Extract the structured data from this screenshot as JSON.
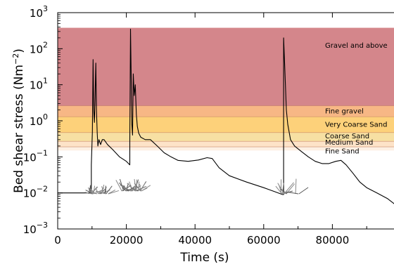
{
  "chart_data": {
    "type": "line",
    "title": "",
    "xlabel": "Time (s)",
    "ylabel": "Bed shear stress (Nm",
    "ylabel_sup": "−2",
    "ylabel_close": ")",
    "x_scale": "linear",
    "y_scale": "log",
    "xlim": [
      0,
      100000
    ],
    "ylim": [
      0.001,
      1000
    ],
    "x_ticks": [
      0,
      20000,
      40000,
      60000,
      80000
    ],
    "x_tick_labels": [
      "0",
      "20000",
      "40000",
      "60000",
      "80000"
    ],
    "y_ticks": [
      0.001,
      0.01,
      0.1,
      1,
      10,
      100,
      1000
    ],
    "y_tick_labels": [
      {
        "base": "10",
        "exp": "−3"
      },
      {
        "base": "10",
        "exp": "−2"
      },
      {
        "base": "10",
        "exp": "−1"
      },
      {
        "base": "10",
        "exp": "0"
      },
      {
        "base": "10",
        "exp": "1"
      },
      {
        "base": "10",
        "exp": "2"
      },
      {
        "base": "10",
        "exp": "3"
      }
    ],
    "grid": false,
    "legend": "none",
    "bands": [
      {
        "label": "Fine Sand",
        "low": 0.15,
        "high": 0.19,
        "color": "#fdf0e4"
      },
      {
        "label": "Medium Sand",
        "low": 0.19,
        "high": 0.27,
        "color": "#fde3c8"
      },
      {
        "label": "Coarse Sand",
        "low": 0.27,
        "high": 0.47,
        "color": "#f7e0a3"
      },
      {
        "label": "Very Coarse Sand",
        "low": 0.47,
        "high": 1.3,
        "color": "#fdd17a"
      },
      {
        "label": "Fine gravel",
        "low": 1.3,
        "high": 2.6,
        "color": "#f7b785"
      },
      {
        "label": "Gravel and above",
        "low": 2.6,
        "high": 380,
        "color": "#d4868b"
      }
    ],
    "series": [
      {
        "color": "#000000",
        "points": [
          [
            0,
            0.01
          ],
          [
            9800,
            0.01
          ],
          [
            9800,
            0.06
          ],
          [
            10100,
            0.5
          ],
          [
            10300,
            50
          ],
          [
            10500,
            2
          ],
          [
            10700,
            0.9
          ],
          [
            10900,
            5
          ],
          [
            11100,
            40
          ],
          [
            11300,
            2
          ],
          [
            11500,
            0.5
          ],
          [
            11700,
            0.2
          ],
          [
            12000,
            0.3
          ],
          [
            12500,
            0.22
          ],
          [
            13000,
            0.3
          ],
          [
            13500,
            0.3
          ],
          [
            14500,
            0.22
          ],
          [
            16000,
            0.16
          ],
          [
            18000,
            0.1
          ],
          [
            20000,
            0.075
          ],
          [
            21000,
            0.06
          ],
          [
            21000,
            0.3
          ],
          [
            21200,
            350
          ],
          [
            21400,
            20
          ],
          [
            21600,
            0.8
          ],
          [
            21800,
            0.4
          ],
          [
            22000,
            20
          ],
          [
            22300,
            5
          ],
          [
            22600,
            10
          ],
          [
            22900,
            1.5
          ],
          [
            23200,
            0.7
          ],
          [
            23600,
            0.45
          ],
          [
            24200,
            0.35
          ],
          [
            25500,
            0.3
          ],
          [
            27000,
            0.3
          ],
          [
            29000,
            0.2
          ],
          [
            31000,
            0.13
          ],
          [
            33000,
            0.1
          ],
          [
            35000,
            0.08
          ],
          [
            38000,
            0.075
          ],
          [
            41000,
            0.082
          ],
          [
            43500,
            0.095
          ],
          [
            45000,
            0.09
          ],
          [
            47000,
            0.05
          ],
          [
            50000,
            0.03
          ],
          [
            55000,
            0.02
          ],
          [
            60000,
            0.014
          ],
          [
            63000,
            0.011
          ],
          [
            65500,
            0.009
          ],
          [
            65800,
            0.009
          ],
          [
            65800,
            200
          ],
          [
            66200,
            20
          ],
          [
            66600,
            2
          ],
          [
            67000,
            0.8
          ],
          [
            67800,
            0.3
          ],
          [
            69000,
            0.2
          ],
          [
            71000,
            0.14
          ],
          [
            73000,
            0.1
          ],
          [
            75000,
            0.075
          ],
          [
            77000,
            0.065
          ],
          [
            79000,
            0.065
          ],
          [
            81000,
            0.075
          ],
          [
            82500,
            0.08
          ],
          [
            84000,
            0.06
          ],
          [
            86000,
            0.035
          ],
          [
            88000,
            0.02
          ],
          [
            90000,
            0.014
          ],
          [
            93000,
            0.01
          ],
          [
            96000,
            0.007
          ],
          [
            98000,
            0.005
          ],
          [
            100000,
            0.004
          ]
        ]
      }
    ]
  }
}
